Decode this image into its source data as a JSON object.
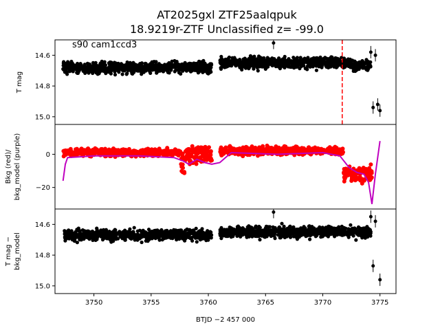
{
  "title_line1": "AT2025gxl  ZTF25aalqpuk",
  "title_line2": "18.9219r-ZTF Unclassified z= -99.0",
  "annotation": "s90 cam1ccd3",
  "colors": {
    "data": "#000000",
    "bkg": "#ff0000",
    "bkg_model": "#bf00bf",
    "event_line": "#ff0000"
  },
  "chart_data": [
    {
      "type": "scatter",
      "panel": "top",
      "ylabel": "T mag",
      "y_inverted": true,
      "xlim": [
        3746.6,
        3776.4
      ],
      "ylim": [
        15.05,
        14.5
      ],
      "yticks": [
        14.6,
        14.8,
        15.0
      ],
      "ytick_labels": [
        "14.6",
        "14.8",
        "15.0"
      ],
      "event_line_x": 3771.7,
      "series": [
        {
          "color": "#000000",
          "segments": [
            {
              "x": [
                3747.3,
                3760.3
              ],
              "y_center": 14.68
            },
            {
              "x": [
                3761.0,
                3772.6
              ],
              "y_center": 14.65
            },
            {
              "x": [
                3772.6,
                3774.2
              ],
              "y_center": 14.67
            }
          ],
          "outliers": [
            {
              "x": 3765.7,
              "y": 14.52
            },
            {
              "x": 3774.4,
              "y": 14.94
            },
            {
              "x": 3774.8,
              "y": 14.92
            },
            {
              "x": 3775.0,
              "y": 14.96
            },
            {
              "x": 3774.6,
              "y": 14.6
            },
            {
              "x": 3774.2,
              "y": 14.58
            }
          ]
        }
      ]
    },
    {
      "type": "scatter",
      "panel": "middle",
      "ylabel": "Bkg (red)/\nbkg_model (purple)",
      "xlim": [
        3746.6,
        3776.4
      ],
      "ylim": [
        -33,
        18
      ],
      "yticks": [
        0,
        -20
      ],
      "ytick_labels": [
        "0",
        "−20"
      ],
      "series": [
        {
          "color": "#ff0000",
          "segments": [
            {
              "x": [
                3747.3,
                3758.0
              ],
              "y_center": 1
            },
            {
              "x": [
                3758.0,
                3760.3
              ],
              "y_center": 0
            },
            {
              "x": [
                3761.0,
                3771.8
              ],
              "y_center": 2
            },
            {
              "x": [
                3771.8,
                3774.3
              ],
              "y_center": -12
            }
          ]
        },
        {
          "color": "#bf00bf",
          "x": [
            3747.3,
            3747.5,
            3747.7,
            3750,
            3754,
            3757,
            3757.8,
            3758.3,
            3759,
            3759.7,
            3760.3,
            3761.0,
            3762,
            3766,
            3770,
            3771.5,
            3772.3,
            3773,
            3773.6,
            3774.0,
            3774.3,
            3774.6,
            3775.0
          ],
          "y": [
            -16,
            -6,
            -2,
            -1,
            -1,
            -2,
            -4,
            -6,
            -3,
            -5,
            -6,
            -5,
            1,
            0,
            1,
            -1,
            -8,
            -11,
            -12,
            -17,
            -30,
            -12,
            8
          ]
        }
      ]
    },
    {
      "type": "scatter",
      "panel": "bottom",
      "xlabel": "BTJD −2 457 000",
      "ylabel": "T mag −\nbkg_model",
      "y_inverted": true,
      "xlim": [
        3746.6,
        3776.4
      ],
      "ylim": [
        15.05,
        14.5
      ],
      "xticks": [
        3750,
        3755,
        3760,
        3765,
        3770,
        3775
      ],
      "xtick_labels": [
        "3750",
        "3755",
        "3760",
        "3765",
        "3770",
        "3775"
      ],
      "yticks": [
        14.6,
        14.8,
        15.0
      ],
      "ytick_labels": [
        "14.6",
        "14.8",
        "15.0"
      ],
      "series": [
        {
          "color": "#000000",
          "segments": [
            {
              "x": [
                3747.3,
                3760.3
              ],
              "y_center": 14.67
            },
            {
              "x": [
                3761.0,
                3774.2
              ],
              "y_center": 14.65
            }
          ],
          "outliers": [
            {
              "x": 3765.7,
              "y": 14.52
            },
            {
              "x": 3774.4,
              "y": 14.87
            },
            {
              "x": 3775.0,
              "y": 14.96
            },
            {
              "x": 3774.2,
              "y": 14.55
            },
            {
              "x": 3774.6,
              "y": 14.58
            }
          ]
        }
      ]
    }
  ]
}
